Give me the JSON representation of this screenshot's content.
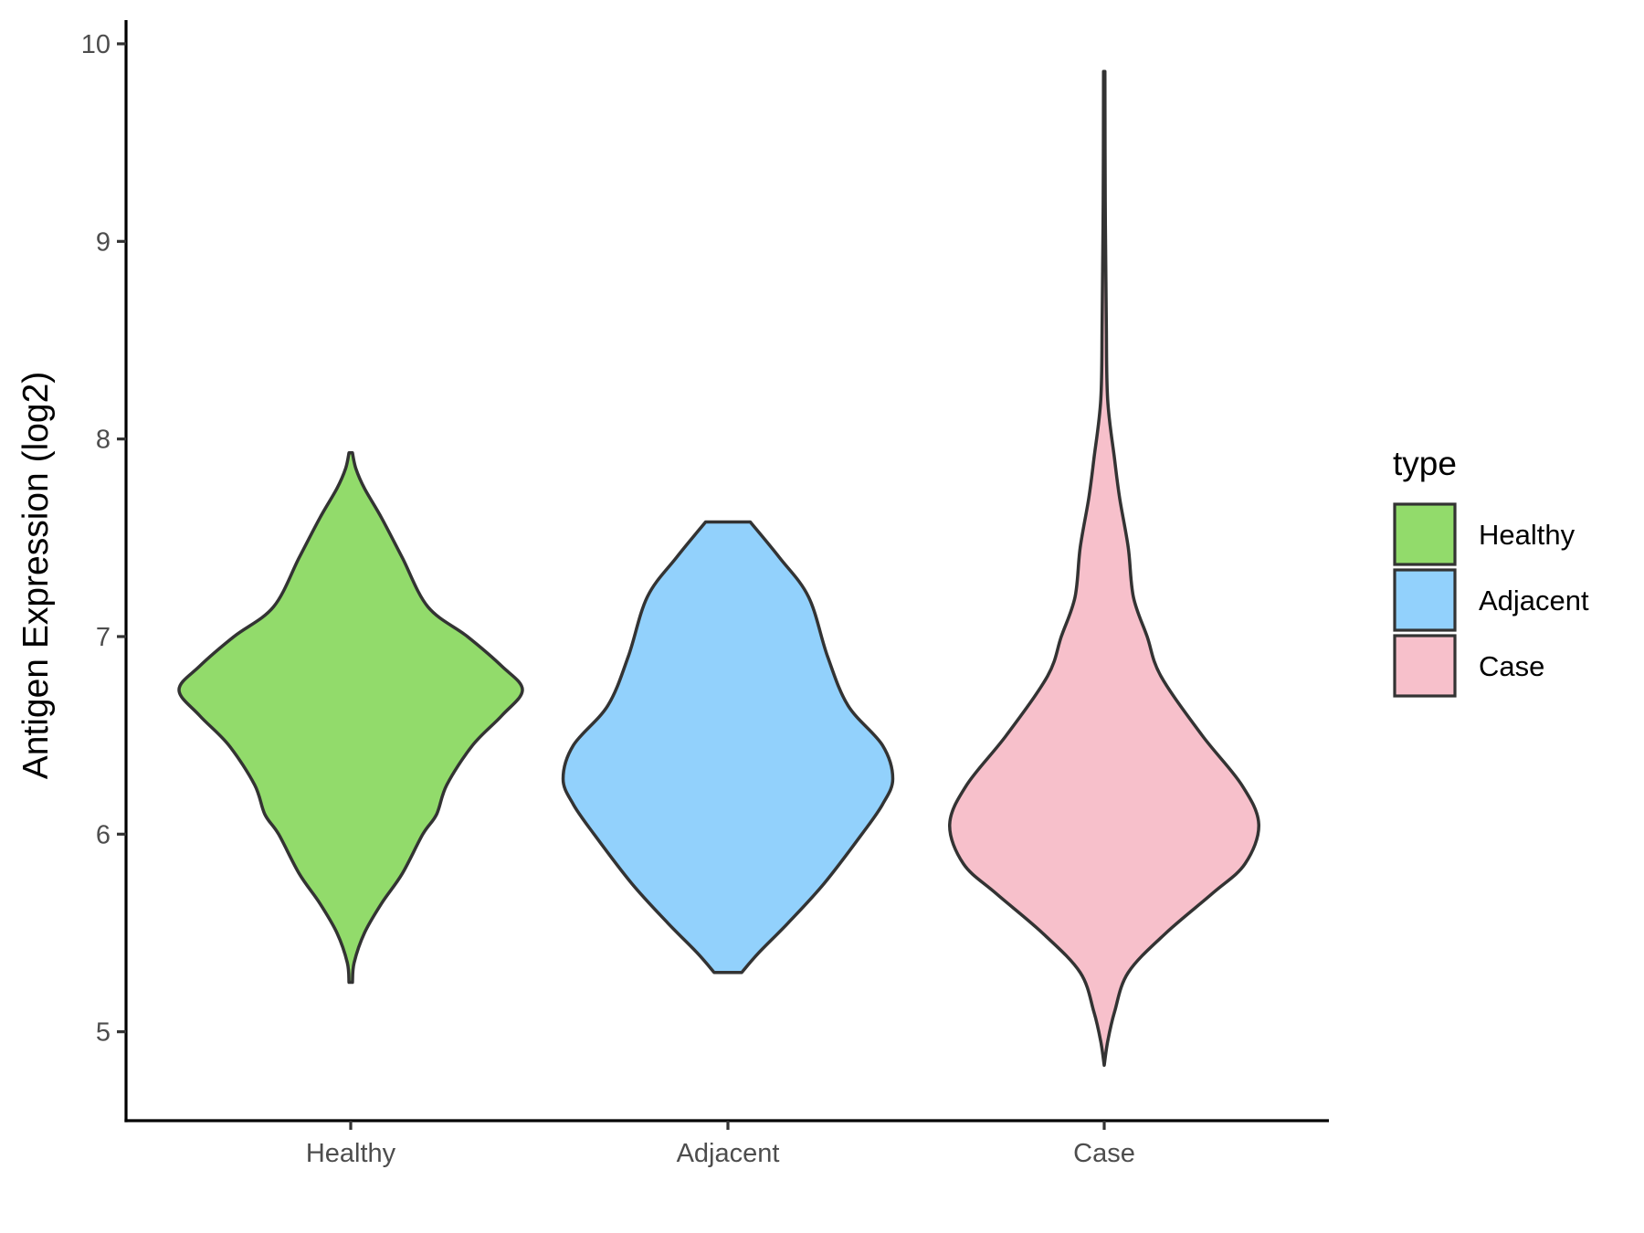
{
  "chart_data": {
    "type": "violin",
    "ylabel": "Antigen Expression (log2)",
    "xlabel": "",
    "categories": [
      "Healthy",
      "Adjacent",
      "Case"
    ],
    "y_ticks": [
      5,
      6,
      7,
      8,
      9,
      10
    ],
    "ylim": [
      4.55,
      10.12
    ],
    "grid": false,
    "legend": {
      "title": "type",
      "placement": "right",
      "entries": [
        {
          "label": "Healthy",
          "color": "#92DB6B"
        },
        {
          "label": "Adjacent",
          "color": "#92D1FC"
        },
        {
          "label": "Case",
          "color": "#F7C0CB"
        }
      ]
    },
    "series": [
      {
        "category": "Healthy",
        "color": "#92DB6B",
        "min": 5.25,
        "max": 7.93,
        "density_profile": [
          [
            5.25,
            0.01
          ],
          [
            5.35,
            0.02
          ],
          [
            5.5,
            0.08
          ],
          [
            5.65,
            0.18
          ],
          [
            5.8,
            0.3
          ],
          [
            6.0,
            0.42
          ],
          [
            6.1,
            0.5
          ],
          [
            6.25,
            0.56
          ],
          [
            6.45,
            0.71
          ],
          [
            6.6,
            0.88
          ],
          [
            6.73,
            1.0
          ],
          [
            6.85,
            0.88
          ],
          [
            7.0,
            0.68
          ],
          [
            7.15,
            0.45
          ],
          [
            7.4,
            0.3
          ],
          [
            7.6,
            0.18
          ],
          [
            7.75,
            0.08
          ],
          [
            7.85,
            0.03
          ],
          [
            7.93,
            0.01
          ]
        ]
      },
      {
        "category": "Adjacent",
        "color": "#92D1FC",
        "min": 5.3,
        "max": 7.58,
        "density_profile": [
          [
            5.3,
            0.08
          ],
          [
            5.4,
            0.18
          ],
          [
            5.55,
            0.35
          ],
          [
            5.75,
            0.56
          ],
          [
            6.0,
            0.78
          ],
          [
            6.15,
            0.9
          ],
          [
            6.28,
            0.96
          ],
          [
            6.45,
            0.9
          ],
          [
            6.65,
            0.7
          ],
          [
            6.9,
            0.58
          ],
          [
            7.2,
            0.47
          ],
          [
            7.4,
            0.3
          ],
          [
            7.58,
            0.13
          ]
        ]
      },
      {
        "category": "Case",
        "color": "#F7C0CB",
        "min": 4.83,
        "max": 9.86,
        "density_profile": [
          [
            4.83,
            0.0
          ],
          [
            4.95,
            0.02
          ],
          [
            5.1,
            0.06
          ],
          [
            5.3,
            0.14
          ],
          [
            5.5,
            0.36
          ],
          [
            5.7,
            0.63
          ],
          [
            5.85,
            0.82
          ],
          [
            6.05,
            0.9
          ],
          [
            6.25,
            0.8
          ],
          [
            6.5,
            0.57
          ],
          [
            6.8,
            0.33
          ],
          [
            7.0,
            0.25
          ],
          [
            7.2,
            0.17
          ],
          [
            7.45,
            0.14
          ],
          [
            7.7,
            0.09
          ],
          [
            7.9,
            0.06
          ],
          [
            8.2,
            0.02
          ],
          [
            8.6,
            0.012
          ],
          [
            9.2,
            0.006
          ],
          [
            9.86,
            0.004
          ]
        ]
      }
    ]
  }
}
